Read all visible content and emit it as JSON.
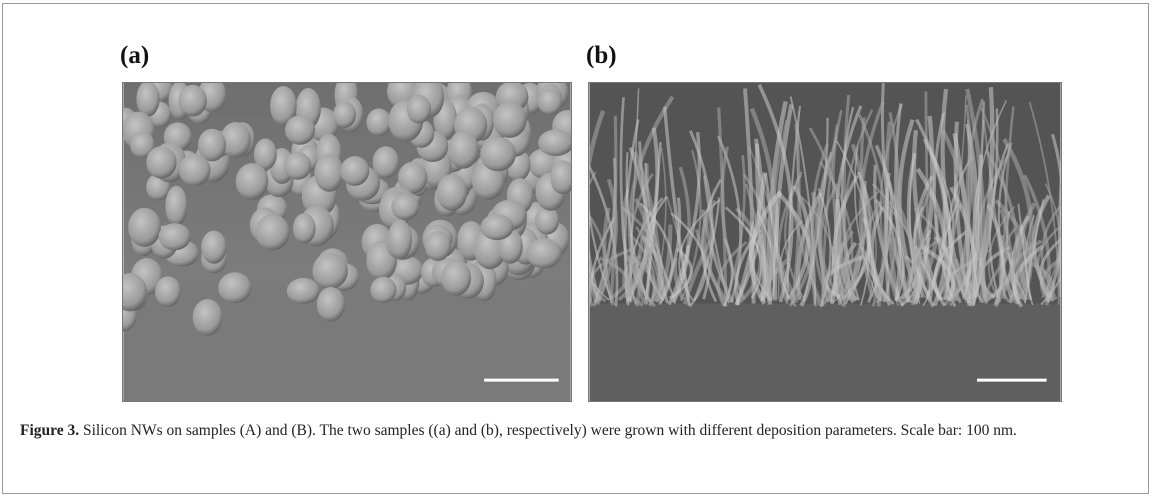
{
  "figure": {
    "panels": [
      {
        "label": "(a)"
      },
      {
        "label": "(b)"
      }
    ],
    "caption": {
      "label": "Figure 3.",
      "text": "Silicon NWs on samples (A) and (B). The two samples ((a) and (b), respectively) were grown with different deposition parameters. Scale bar: 100 nm."
    }
  }
}
